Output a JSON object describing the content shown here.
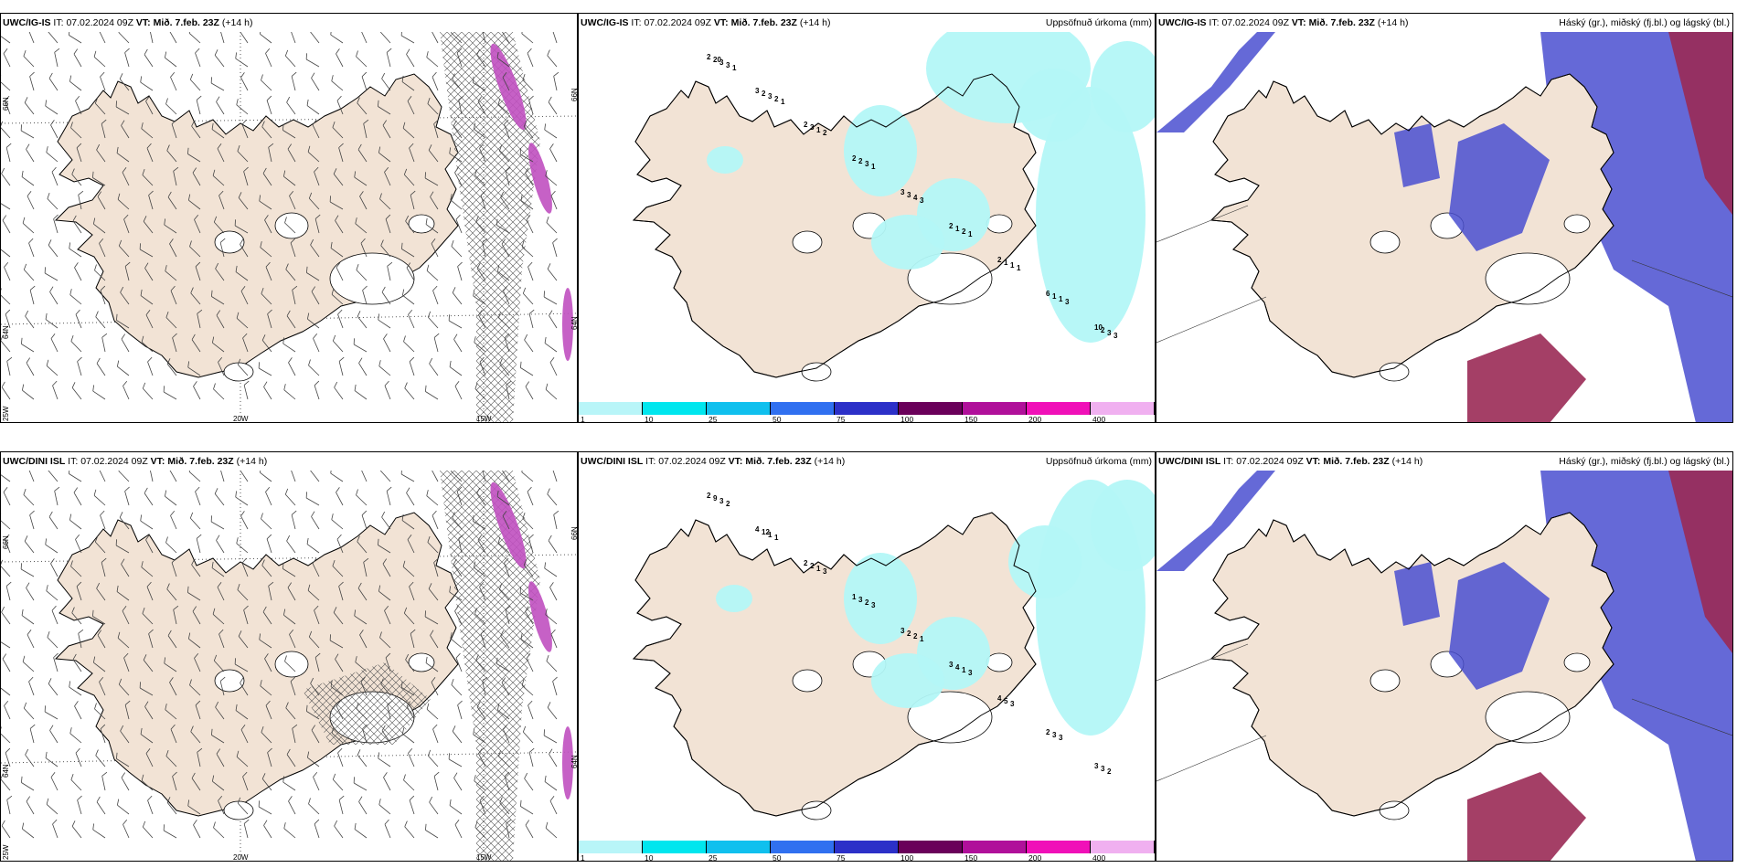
{
  "colors": {
    "land": "#f2e3d5",
    "precip": "#b3f7f7",
    "wind": "#444444",
    "cross": "#555555",
    "magenta": "#c050c0",
    "cloud_high": "#4a4fd0",
    "cloud_mid": "#5ea0ee",
    "cloud_low": "#9a2a55"
  },
  "rows": [
    {
      "model": "UWC/IG-IS",
      "it_label": "IT:",
      "it_value": "07.02.2024 09Z",
      "vt_label": "VT:",
      "vt_value": "Mið. 7.feb. 23Z",
      "lead": "(+14 h)",
      "precip_numbers": [
        "2",
        "3",
        "2",
        "2",
        "3",
        "2",
        "2",
        "6",
        "10",
        "20",
        "2",
        "3",
        "2",
        "3",
        "1",
        "1",
        "1",
        "2",
        "3",
        "3",
        "1",
        "3",
        "4",
        "2",
        "1",
        "1",
        "3",
        "3",
        "2",
        "2",
        "1",
        "3",
        "1",
        "1",
        "3",
        "3",
        "1",
        "1"
      ],
      "wind_lat_labels": [
        "66N",
        "66N",
        "64N",
        "64N",
        "25W"
      ],
      "wind_lon_labels": [
        "20W",
        "15W"
      ]
    },
    {
      "model": "UWC/DINI ISL",
      "it_label": "IT:",
      "it_value": "07.02.2024 09Z",
      "vt_label": "VT:",
      "vt_value": "Mið. 7.feb. 23Z",
      "lead": "(+14 h)",
      "precip_numbers": [
        "2",
        "4",
        "2",
        "1",
        "3",
        "3",
        "4",
        "2",
        "3",
        "9",
        "12",
        "2",
        "3",
        "2",
        "4",
        "5",
        "3",
        "3",
        "3",
        "1",
        "1",
        "2",
        "2",
        "1",
        "3",
        "3",
        "2",
        "2",
        "1",
        "3",
        "3",
        "1",
        "3"
      ],
      "wind_lat_labels": [
        "66N",
        "66N",
        "64N",
        "64N",
        "25W"
      ],
      "wind_lon_labels": [
        "20W",
        "15W"
      ]
    }
  ],
  "precip_title": "Uppsöfnuð úrkoma (mm)",
  "cloud_title": "Háský (gr.), miðský (fj.bl.) og lágský (bl.)",
  "colorbar": {
    "labels": [
      "1",
      "10",
      "25",
      "50",
      "75",
      "100",
      "150",
      "200",
      "400"
    ],
    "colors": [
      "#b8f5f8",
      "#00e6ee",
      "#10c0ee",
      "#3070f0",
      "#2c30c8",
      "#6a005a",
      "#b0109a",
      "#f010b8",
      "#f0b0f0"
    ]
  }
}
